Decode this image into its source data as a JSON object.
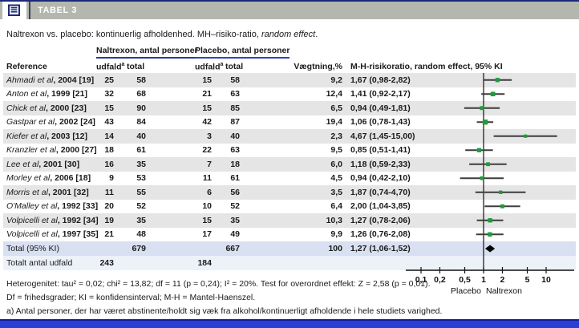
{
  "titlebar": {
    "title": "TABEL 3"
  },
  "caption": {
    "text": "Naltrexon vs. placebo: kontinuerlig afholdenhed. MH–risiko-ratio, ",
    "italic": "random effect",
    "period": "."
  },
  "table": {
    "group_headers": {
      "naltrexon": "Naltrexon, antal personer",
      "placebo": "Placebo, antal personer"
    },
    "subheaders": {
      "reference": "Reference",
      "udfald": "udfald",
      "udfald_sup": "a",
      "total": "total",
      "weight": "Vægtning,%",
      "ratio": "M-H-risikoratio, random effect, 95% KI"
    },
    "rows": [
      {
        "name": "Ahmadi et al",
        "rest": ", 2004 [19]",
        "n_udfald": "25",
        "n_total": "58",
        "p_udfald": "15",
        "p_total": "58",
        "weight": "9,2",
        "rr_text": "1,67 (0,98-2,82)"
      },
      {
        "name": "Anton et al",
        "rest": ", 1999 [21]",
        "n_udfald": "32",
        "n_total": "68",
        "p_udfald": "21",
        "p_total": "63",
        "weight": "12,4",
        "rr_text": "1,41 (0,92-2,17)"
      },
      {
        "name": "Chick et al",
        "rest": ", 2000 [23]",
        "n_udfald": "15",
        "n_total": "90",
        "p_udfald": "15",
        "p_total": "85",
        "weight": "6,5",
        "rr_text": "0,94 (0,49-1,81)"
      },
      {
        "name": "Gastpar et al",
        "rest": ", 2002 [24]",
        "n_udfald": "43",
        "n_total": "84",
        "p_udfald": "42",
        "p_total": "87",
        "weight": "19,4",
        "rr_text": "1,06 (0,78-1,43)"
      },
      {
        "name": "Kiefer et al",
        "rest": ", 2003 [12]",
        "n_udfald": "14",
        "n_total": "40",
        "p_udfald": "3",
        "p_total": "40",
        "weight": "2,3",
        "rr_text": "4,67 (1,45-15,00)"
      },
      {
        "name": "Kranzler et al",
        "rest": ", 2000 [27]",
        "n_udfald": "18",
        "n_total": "61",
        "p_udfald": "22",
        "p_total": "63",
        "weight": "9,5",
        "rr_text": "0,85 (0,51-1,41)"
      },
      {
        "name": "Lee et al",
        "rest": ", 2001 [30]",
        "n_udfald": "16",
        "n_total": "35",
        "p_udfald": "7",
        "p_total": "18",
        "weight": "6,0",
        "rr_text": "1,18 (0,59-2,33)"
      },
      {
        "name": "Morley et al",
        "rest": ", 2006 [18]",
        "n_udfald": "9",
        "n_total": "53",
        "p_udfald": "11",
        "p_total": "61",
        "weight": "4,5",
        "rr_text": "0,94 (0,42-2,10)"
      },
      {
        "name": "Morris et al",
        "rest": ", 2001 [32]",
        "n_udfald": "11",
        "n_total": "55",
        "p_udfald": "6",
        "p_total": "56",
        "weight": "3,5",
        "rr_text": "1,87 (0,74-4,70)"
      },
      {
        "name": "O'Malley et al",
        "rest": ", 1992 [33]",
        "n_udfald": "20",
        "n_total": "52",
        "p_udfald": "10",
        "p_total": "52",
        "weight": "6,4",
        "rr_text": "2,00 (1,04-3,85)"
      },
      {
        "name": "Volpicelli et al",
        "rest": ", 1992 [34]",
        "n_udfald": "19",
        "n_total": "35",
        "p_udfald": "15",
        "p_total": "35",
        "weight": "10,3",
        "rr_text": "1,27 (0,78-2,06)"
      },
      {
        "name": "Volpicelli et al",
        "rest": ", 1997 [35]",
        "n_udfald": "21",
        "n_total": "48",
        "p_udfald": "17",
        "p_total": "49",
        "weight": "9,9",
        "rr_text": "1,26 (0,76-2,08)"
      }
    ],
    "total_row": {
      "label": "Total (95% KI)",
      "n_total": "679",
      "p_total": "667",
      "weight": "100",
      "rr_text": "1,27 (1,06-1,52)"
    },
    "events_row": {
      "label": "Totalt antal udfald",
      "n_udfald": "243",
      "p_udfald": "184"
    }
  },
  "footnotes": [
    "Heterogenitet: tau² = 0,02; chi² = 13,82; df = 11 (p = 0,24); I² = 20%. Test for overordnet effekt: Z = 2,58 (p = 0,01).",
    "Df = frihedsgrader; KI = konfidensinterval; M-H = Mantel-Haenszel.",
    "a) Antal personer, der har været abstinente/holdt sig væk fra alkohol/kontinuerligt afholdende i hele studiets varighed."
  ],
  "colors": {
    "navy": "#1c2878",
    "titlebar_gray": "#b3b7ae",
    "stripe_gray": "#e5e5e5",
    "total_row_blue": "#d8e0f1",
    "marker_green": "#1f9c38",
    "ci_line": "#3d3d3d",
    "axis": "#111111",
    "bottom_bar_blue": "#2b3ed6"
  },
  "chart_data": {
    "type": "forest",
    "scale": "log",
    "title": "M-H-risikoratio, random effect, 95% KI",
    "ref_line": 1,
    "ticks": [
      0.1,
      0.2,
      0.5,
      1,
      2,
      5,
      10
    ],
    "tick_labels": [
      "0,1",
      "0,2",
      "0,5",
      "1",
      "2",
      "5",
      "10"
    ],
    "xlim_labeled": [
      0.1,
      10
    ],
    "xlabel_left": "Placebo",
    "xlabel_right": "Naltrexon",
    "studies": [
      {
        "label": "Ahmadi et al, 2004 [19]",
        "rr": 1.67,
        "lo": 0.98,
        "hi": 2.82,
        "weight": 9.2
      },
      {
        "label": "Anton et al, 1999 [21]",
        "rr": 1.41,
        "lo": 0.92,
        "hi": 2.17,
        "weight": 12.4
      },
      {
        "label": "Chick et al, 2000 [23]",
        "rr": 0.94,
        "lo": 0.49,
        "hi": 1.81,
        "weight": 6.5
      },
      {
        "label": "Gastpar et al, 2002 [24]",
        "rr": 1.06,
        "lo": 0.78,
        "hi": 1.43,
        "weight": 19.4
      },
      {
        "label": "Kiefer et al, 2003 [12]",
        "rr": 4.67,
        "lo": 1.45,
        "hi": 15.0,
        "weight": 2.3
      },
      {
        "label": "Kranzler et al, 2000 [27]",
        "rr": 0.85,
        "lo": 0.51,
        "hi": 1.41,
        "weight": 9.5
      },
      {
        "label": "Lee et al, 2001 [30]",
        "rr": 1.18,
        "lo": 0.59,
        "hi": 2.33,
        "weight": 6.0
      },
      {
        "label": "Morley et al, 2006 [18]",
        "rr": 0.94,
        "lo": 0.42,
        "hi": 2.1,
        "weight": 4.5
      },
      {
        "label": "Morris et al, 2001 [32]",
        "rr": 1.87,
        "lo": 0.74,
        "hi": 4.7,
        "weight": 3.5
      },
      {
        "label": "O'Malley et al, 1992 [33]",
        "rr": 2.0,
        "lo": 1.04,
        "hi": 3.85,
        "weight": 6.4
      },
      {
        "label": "Volpicelli et al, 1992 [34]",
        "rr": 1.27,
        "lo": 0.78,
        "hi": 2.06,
        "weight": 10.3
      },
      {
        "label": "Volpicelli et al, 1997 [35]",
        "rr": 1.26,
        "lo": 0.76,
        "hi": 2.08,
        "weight": 9.9
      }
    ],
    "total": {
      "label": "Total (95% KI)",
      "rr": 1.27,
      "lo": 1.06,
      "hi": 1.52,
      "weight": 100
    }
  }
}
